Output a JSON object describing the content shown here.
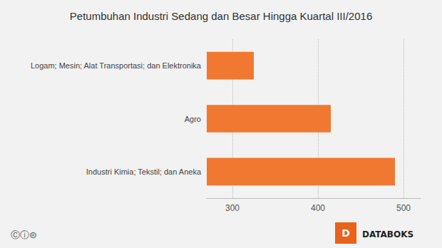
{
  "chart_data": {
    "type": "bar",
    "orientation": "horizontal",
    "title": "Petumbuhan Industri Sedang dan Besar Hingga Kuartal III/2016",
    "categories": [
      "Industri Kimia; Tekstil; dan Aneka",
      "Agro",
      "Logam; Mesin; Alat Transportasi; dan Elektronika"
    ],
    "values": [
      490,
      415,
      325
    ],
    "color": "#F07830",
    "xlim": [
      270,
      520
    ],
    "xticks": [
      300,
      400,
      500
    ],
    "grid": true,
    "annotations": [
      "Ⓒⓘ⊜",
      "D",
      "DATABOKS"
    ]
  }
}
